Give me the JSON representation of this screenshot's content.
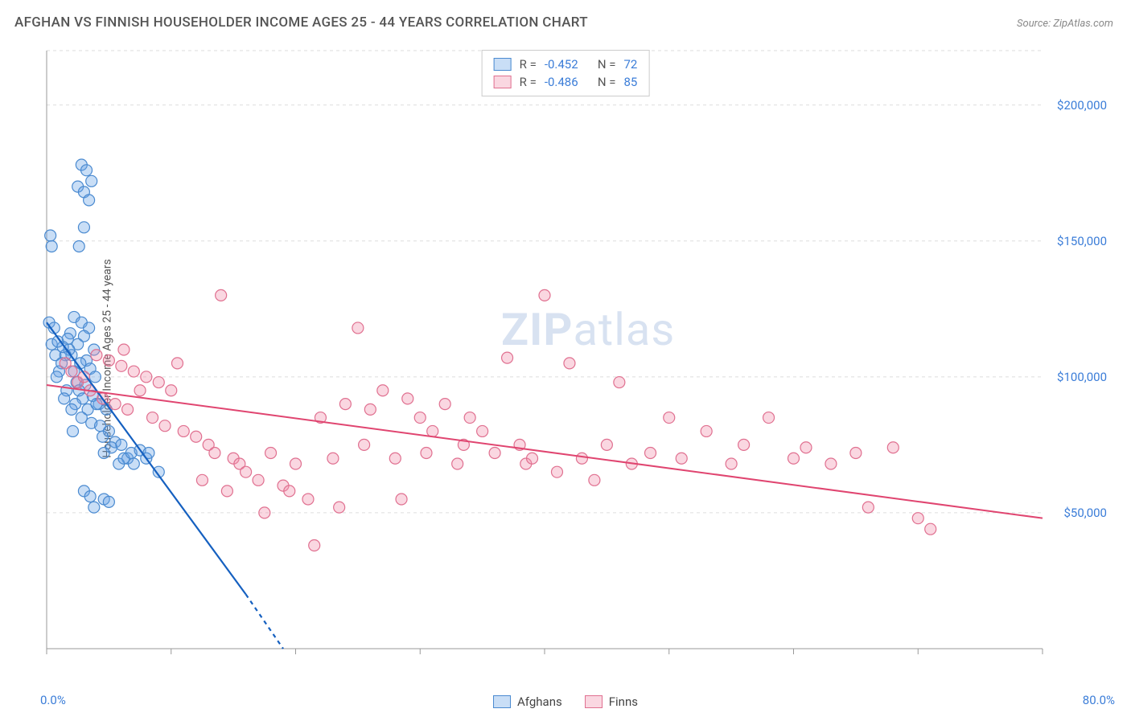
{
  "title": "AFGHAN VS FINNISH HOUSEHOLDER INCOME AGES 25 - 44 YEARS CORRELATION CHART",
  "source": "Source: ZipAtlas.com",
  "watermark_bold": "ZIP",
  "watermark_rest": "atlas",
  "chart": {
    "type": "scatter",
    "background_color": "#ffffff",
    "grid_color": "#dddddd",
    "axis_line_color": "#999999",
    "tick_label_color": "#3b7dd8",
    "axis_label_color": "#555555",
    "xlim": [
      0,
      80
    ],
    "ylim": [
      0,
      220000
    ],
    "x_ticks": [
      0,
      10,
      20,
      30,
      40,
      50,
      60,
      70,
      80
    ],
    "y_ticks": [
      50000,
      100000,
      150000,
      200000
    ],
    "y_tick_labels": [
      "$50,000",
      "$100,000",
      "$150,000",
      "$200,000"
    ],
    "x_min_label": "0.0%",
    "x_max_label": "80.0%",
    "y_axis_label": "Householder Income Ages 25 - 44 years",
    "marker_radius": 7,
    "marker_stroke_width": 1.2,
    "series": [
      {
        "name": "Afghans",
        "fill_color": "rgba(100,160,230,0.35)",
        "stroke_color": "#4a8ad0",
        "line_color": "#1560c0",
        "line_width": 2.2,
        "R": "-0.452",
        "N": "72",
        "trend": {
          "x1": 0,
          "y1": 120000,
          "x2": 16,
          "y2": 20000,
          "dash_extend_x2": 19,
          "dash_extend_y2": 0
        },
        "points": [
          [
            0.3,
            152000
          ],
          [
            0.4,
            148000
          ],
          [
            0.2,
            120000
          ],
          [
            0.6,
            118000
          ],
          [
            0.4,
            112000
          ],
          [
            0.7,
            108000
          ],
          [
            2.8,
            178000
          ],
          [
            3.2,
            176000
          ],
          [
            2.5,
            170000
          ],
          [
            3.6,
            172000
          ],
          [
            3.0,
            168000
          ],
          [
            3.4,
            165000
          ],
          [
            3.0,
            155000
          ],
          [
            2.6,
            148000
          ],
          [
            2.2,
            122000
          ],
          [
            2.8,
            120000
          ],
          [
            3.4,
            118000
          ],
          [
            3.0,
            115000
          ],
          [
            2.5,
            112000
          ],
          [
            3.8,
            110000
          ],
          [
            2.0,
            108000
          ],
          [
            3.2,
            106000
          ],
          [
            2.7,
            105000
          ],
          [
            3.5,
            103000
          ],
          [
            2.2,
            102000
          ],
          [
            3.9,
            100000
          ],
          [
            2.4,
            98000
          ],
          [
            3.1,
            97000
          ],
          [
            2.6,
            95000
          ],
          [
            3.7,
            93000
          ],
          [
            2.9,
            92000
          ],
          [
            2.3,
            90000
          ],
          [
            3.3,
            88000
          ],
          [
            2.8,
            85000
          ],
          [
            3.6,
            83000
          ],
          [
            2.1,
            80000
          ],
          [
            4.2,
            90000
          ],
          [
            4.8,
            88000
          ],
          [
            5.0,
            80000
          ],
          [
            4.5,
            78000
          ],
          [
            5.5,
            76000
          ],
          [
            6.0,
            75000
          ],
          [
            5.2,
            74000
          ],
          [
            4.6,
            72000
          ],
          [
            6.5,
            70000
          ],
          [
            5.8,
            68000
          ],
          [
            4.0,
            90000
          ],
          [
            4.3,
            82000
          ],
          [
            3.0,
            58000
          ],
          [
            3.5,
            56000
          ],
          [
            4.6,
            55000
          ],
          [
            5.0,
            54000
          ],
          [
            3.8,
            52000
          ],
          [
            6.2,
            70000
          ],
          [
            6.8,
            72000
          ],
          [
            7.0,
            68000
          ],
          [
            7.5,
            73000
          ],
          [
            8.0,
            70000
          ],
          [
            8.2,
            72000
          ],
          [
            9.0,
            65000
          ],
          [
            1.8,
            110000
          ],
          [
            1.5,
            108000
          ],
          [
            1.2,
            105000
          ],
          [
            1.0,
            102000
          ],
          [
            0.8,
            100000
          ],
          [
            1.6,
            95000
          ],
          [
            1.4,
            92000
          ],
          [
            2.0,
            88000
          ],
          [
            1.9,
            116000
          ],
          [
            1.7,
            114000
          ],
          [
            1.3,
            111000
          ],
          [
            0.9,
            113000
          ]
        ]
      },
      {
        "name": "Finns",
        "fill_color": "rgba(240,140,170,0.35)",
        "stroke_color": "#e07090",
        "line_color": "#e04570",
        "line_width": 2.0,
        "R": "-0.486",
        "N": "85",
        "trend": {
          "x1": 0,
          "y1": 97000,
          "x2": 80,
          "y2": 48000
        },
        "points": [
          [
            1.5,
            105000
          ],
          [
            2.0,
            102000
          ],
          [
            2.5,
            98000
          ],
          [
            3.0,
            100000
          ],
          [
            3.5,
            95000
          ],
          [
            4.0,
            108000
          ],
          [
            4.5,
            92000
          ],
          [
            5.0,
            106000
          ],
          [
            5.5,
            90000
          ],
          [
            6.0,
            104000
          ],
          [
            6.5,
            88000
          ],
          [
            7.0,
            102000
          ],
          [
            7.5,
            95000
          ],
          [
            8.0,
            100000
          ],
          [
            8.5,
            85000
          ],
          [
            9.0,
            98000
          ],
          [
            9.5,
            82000
          ],
          [
            10.0,
            95000
          ],
          [
            10.5,
            105000
          ],
          [
            11.0,
            80000
          ],
          [
            12.0,
            78000
          ],
          [
            13.0,
            75000
          ],
          [
            13.5,
            72000
          ],
          [
            14.0,
            130000
          ],
          [
            15.0,
            70000
          ],
          [
            15.5,
            68000
          ],
          [
            16.0,
            65000
          ],
          [
            17.0,
            62000
          ],
          [
            18.0,
            72000
          ],
          [
            19.0,
            60000
          ],
          [
            19.5,
            58000
          ],
          [
            20.0,
            68000
          ],
          [
            21.0,
            55000
          ],
          [
            22.0,
            85000
          ],
          [
            23.0,
            70000
          ],
          [
            24.0,
            90000
          ],
          [
            25.0,
            118000
          ],
          [
            25.5,
            75000
          ],
          [
            26.0,
            88000
          ],
          [
            27.0,
            95000
          ],
          [
            28.0,
            70000
          ],
          [
            28.5,
            55000
          ],
          [
            29.0,
            92000
          ],
          [
            30.0,
            85000
          ],
          [
            30.5,
            72000
          ],
          [
            31.0,
            80000
          ],
          [
            32.0,
            90000
          ],
          [
            33.0,
            68000
          ],
          [
            33.5,
            75000
          ],
          [
            34.0,
            85000
          ],
          [
            35.0,
            80000
          ],
          [
            36.0,
            72000
          ],
          [
            37.0,
            107000
          ],
          [
            38.0,
            75000
          ],
          [
            38.5,
            68000
          ],
          [
            39.0,
            70000
          ],
          [
            40.0,
            130000
          ],
          [
            41.0,
            65000
          ],
          [
            42.0,
            105000
          ],
          [
            43.0,
            70000
          ],
          [
            44.0,
            62000
          ],
          [
            45.0,
            75000
          ],
          [
            46.0,
            98000
          ],
          [
            47.0,
            68000
          ],
          [
            48.5,
            72000
          ],
          [
            50.0,
            85000
          ],
          [
            51.0,
            70000
          ],
          [
            53.0,
            80000
          ],
          [
            55.0,
            68000
          ],
          [
            56.0,
            75000
          ],
          [
            58.0,
            85000
          ],
          [
            60.0,
            70000
          ],
          [
            61.0,
            74000
          ],
          [
            63.0,
            68000
          ],
          [
            65.0,
            72000
          ],
          [
            21.5,
            38000
          ],
          [
            23.5,
            52000
          ],
          [
            66.0,
            52000
          ],
          [
            68.0,
            74000
          ],
          [
            70.0,
            48000
          ],
          [
            71.0,
            44000
          ],
          [
            17.5,
            50000
          ],
          [
            14.5,
            58000
          ],
          [
            12.5,
            62000
          ],
          [
            6.2,
            110000
          ]
        ]
      }
    ],
    "legend_top": {
      "R_label": "R =",
      "N_label": "N =",
      "value_color": "#3b7dd8"
    },
    "legend_bottom": [
      {
        "label": "Afghans",
        "fill": "rgba(100,160,230,0.35)",
        "stroke": "#4a8ad0"
      },
      {
        "label": "Finns",
        "fill": "rgba(240,140,170,0.35)",
        "stroke": "#e07090"
      }
    ]
  }
}
